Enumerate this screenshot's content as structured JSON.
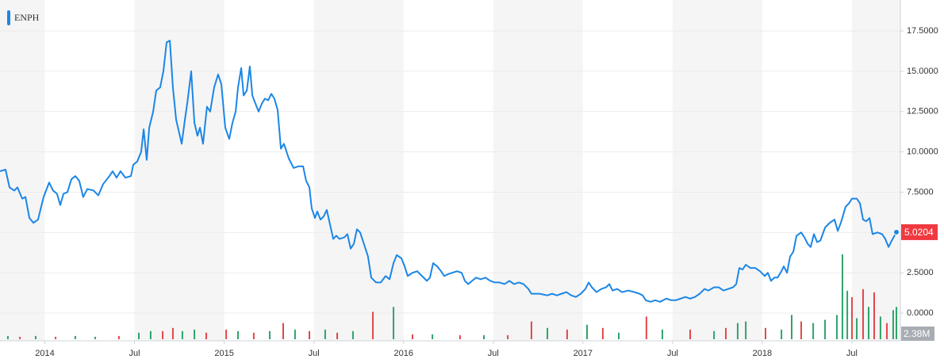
{
  "chart_data": {
    "type": "line",
    "series": [
      {
        "name": "ENPH",
        "color": "#1c86e6",
        "values": [
          8.8,
          8.9,
          7.8,
          7.6,
          7.8,
          7.1,
          7.2,
          5.9,
          5.6,
          5.8,
          7.2,
          8.1,
          7.6,
          7.4,
          6.7,
          7.4,
          7.5,
          8.3,
          8.5,
          8.2,
          7.2,
          7.7,
          7.6,
          7.3,
          8.0,
          8.5,
          8.8,
          8.4,
          8.8,
          8.4,
          8.5,
          9.2,
          9.4,
          10.0,
          11.4,
          9.5,
          11.5,
          12.5,
          13.8,
          14.0,
          15.0,
          16.8,
          16.9,
          14.0,
          12.0,
          10.5,
          12.0,
          13.0,
          15.0,
          11.8,
          11.0,
          11.5,
          10.5,
          12.8,
          12.5,
          14.0,
          14.8,
          14.2,
          11.5,
          10.8,
          11.8,
          12.5,
          14.0,
          15.2,
          13.5,
          13.8,
          15.3,
          13.5,
          13.0,
          12.5,
          13.0,
          13.3,
          13.2,
          13.6,
          13.3,
          12.6,
          10.2,
          10.5,
          9.6,
          9.0,
          9.1,
          9.1,
          8.2,
          7.8,
          6.5,
          5.9,
          6.3,
          5.8,
          6.0,
          6.4,
          5.5,
          4.6,
          4.8,
          4.6,
          4.7,
          4.9,
          4.0,
          4.3,
          5.2,
          5.0,
          4.4,
          3.5,
          2.2,
          1.9,
          1.9,
          2.3,
          2.1,
          3.1,
          3.6,
          3.4,
          2.9,
          2.3,
          2.5,
          2.6,
          2.3,
          2.0,
          2.2,
          3.1,
          2.9,
          2.6,
          2.3,
          2.4,
          2.5,
          2.6,
          2.5,
          2.0,
          1.8,
          2.0,
          2.2,
          2.1,
          2.2,
          2.0,
          1.9,
          1.9,
          1.8,
          2.0,
          1.8,
          1.9,
          1.8,
          1.5,
          1.2,
          1.2,
          1.1,
          1.2,
          1.1,
          1.2,
          1.3,
          1.1,
          1.0,
          1.2,
          1.5,
          1.9,
          1.6,
          1.3,
          1.5,
          1.6,
          1.8,
          1.4,
          1.5,
          1.3,
          1.4,
          1.3,
          1.2,
          1.1,
          0.8,
          0.7,
          0.8,
          0.7,
          0.9,
          0.8,
          0.8,
          0.9,
          1.0,
          0.9,
          1.0,
          1.2,
          1.5,
          1.4,
          1.6,
          1.6,
          1.4,
          1.5,
          1.6,
          1.8,
          2.8,
          2.7,
          3.0,
          2.8,
          2.8,
          2.6,
          2.3,
          2.5,
          2.0,
          2.2,
          2.2,
          2.5,
          2.9,
          2.5,
          3.5,
          3.8,
          4.8,
          5.0,
          4.7,
          4.3,
          4.1,
          4.9,
          4.4,
          4.5,
          5.3,
          5.6,
          5.8,
          5.1,
          5.6,
          6.6,
          6.8,
          7.1,
          7.1,
          6.8,
          5.8,
          5.7,
          5.9,
          4.9,
          5.0,
          4.9,
          4.6,
          4.1,
          4.5,
          5.0204
        ]
      }
    ],
    "x": [
      2013.75,
      2013.781,
      2013.803,
      2013.83,
      2013.847,
      2013.874,
      2013.892,
      2013.914,
      2013.936,
      2013.962,
      2013.993,
      2014.024,
      2014.046,
      2014.068,
      2014.086,
      2014.104,
      2014.126,
      2014.148,
      2014.17,
      2014.192,
      2014.214,
      2014.237,
      2014.272,
      2014.298,
      2014.325,
      2014.36,
      2014.378,
      2014.4,
      2014.422,
      2014.449,
      2014.48,
      2014.493,
      2014.515,
      2014.537,
      2014.551,
      2014.568,
      2014.582,
      2014.604,
      2014.621,
      2014.643,
      2014.661,
      2014.679,
      2014.697,
      2014.714,
      2014.732,
      2014.763,
      2014.781,
      2014.794,
      2014.816,
      2014.834,
      2014.851,
      2014.865,
      2014.882,
      2014.904,
      2014.922,
      2014.944,
      2014.966,
      2014.984,
      2015.006,
      2015.028,
      2015.046,
      2015.064,
      2015.077,
      2015.095,
      2015.108,
      2015.126,
      2015.143,
      2015.157,
      2015.174,
      2015.192,
      2015.21,
      2015.227,
      2015.245,
      2015.263,
      2015.28,
      2015.298,
      2015.316,
      2015.333,
      2015.36,
      2015.387,
      2015.413,
      2015.44,
      2015.457,
      2015.475,
      2015.488,
      2015.506,
      2015.519,
      2015.537,
      2015.555,
      2015.572,
      2015.59,
      2015.608,
      2015.625,
      2015.643,
      2015.67,
      2015.687,
      2015.705,
      2015.723,
      2015.74,
      2015.758,
      2015.776,
      2015.802,
      2015.82,
      2015.847,
      2015.873,
      2015.9,
      2015.922,
      2015.944,
      2015.962,
      2015.988,
      2016.006,
      2016.023,
      2016.05,
      2016.076,
      2016.103,
      2016.13,
      2016.147,
      2016.165,
      2016.187,
      2016.209,
      2016.227,
      2016.245,
      2016.271,
      2016.298,
      2016.324,
      2016.342,
      2016.36,
      2016.382,
      2016.404,
      2016.43,
      2016.457,
      2016.483,
      2016.51,
      2016.536,
      2016.563,
      2016.59,
      2016.616,
      2016.643,
      2016.669,
      2016.696,
      2016.713,
      2016.758,
      2016.802,
      2016.828,
      2016.855,
      2016.881,
      2016.908,
      2016.935,
      2016.961,
      2016.988,
      2017.014,
      2017.032,
      2017.05,
      2017.076,
      2017.103,
      2017.129,
      2017.147,
      2017.165,
      2017.191,
      2017.218,
      2017.253,
      2017.288,
      2017.315,
      2017.333,
      2017.35,
      2017.377,
      2017.403,
      2017.43,
      2017.465,
      2017.492,
      2017.518,
      2017.545,
      2017.571,
      2017.598,
      2017.625,
      2017.651,
      2017.678,
      2017.7,
      2017.731,
      2017.757,
      2017.784,
      2017.81,
      2017.837,
      2017.855,
      2017.872,
      2017.89,
      2017.908,
      2017.934,
      2017.961,
      2017.987,
      2018.014,
      2018.031,
      2018.049,
      2018.067,
      2018.085,
      2018.102,
      2018.12,
      2018.138,
      2018.155,
      2018.173,
      2018.191,
      2018.217,
      2018.235,
      2018.253,
      2018.27,
      2018.288,
      2018.306,
      2018.324,
      2018.35,
      2018.376,
      2018.403,
      2018.421,
      2018.438,
      2018.465,
      2018.483,
      2018.5,
      2018.527,
      2018.545,
      2018.562,
      2018.58,
      2018.598,
      2018.615,
      2018.642,
      2018.668,
      2018.686,
      2018.704,
      2018.722,
      2018.748
    ],
    "xlim": [
      2013.75,
      2018.77
    ],
    "xticks": [
      {
        "value": 2014,
        "label": "2014"
      },
      {
        "value": 2014.5,
        "label": "Jul"
      },
      {
        "value": 2015,
        "label": "2015"
      },
      {
        "value": 2015.5,
        "label": "Jul"
      },
      {
        "value": 2016,
        "label": "2016"
      },
      {
        "value": 2016.5,
        "label": "Jul"
      },
      {
        "value": 2017,
        "label": "2017"
      },
      {
        "value": 2017.5,
        "label": "Jul"
      },
      {
        "value": 2018,
        "label": "2018"
      },
      {
        "value": 2018.5,
        "label": "Jul"
      }
    ],
    "ylim": [
      -1.62,
      19.42
    ],
    "yticks": [
      {
        "value": 0,
        "label": "0.0000"
      },
      {
        "value": 2.5,
        "label": "2.5000"
      },
      {
        "value": 5,
        "label": "5.0000"
      },
      {
        "value": 7.5,
        "label": "7.5000"
      },
      {
        "value": 10,
        "label": "10.0000"
      },
      {
        "value": 12.5,
        "label": "12.5000"
      },
      {
        "value": 15,
        "label": "15.0000"
      },
      {
        "value": 17.5,
        "label": "17.5000"
      }
    ],
    "grid": true,
    "shaded_bands": true,
    "price_tag_color": "#f0393f",
    "volume": {
      "x": [
        2013.794,
        2013.861,
        2013.949,
        2014.06,
        2014.17,
        2014.281,
        2014.413,
        2014.524,
        2014.59,
        2014.657,
        2014.714,
        2014.767,
        2014.834,
        2014.9,
        2015.011,
        2015.077,
        2015.165,
        2015.254,
        2015.329,
        2015.395,
        2015.475,
        2015.563,
        2015.63,
        2015.718,
        2015.829,
        2015.944,
        2016.05,
        2016.161,
        2016.315,
        2016.448,
        2016.581,
        2016.713,
        2016.802,
        2016.912,
        2017.023,
        2017.111,
        2017.2,
        2017.354,
        2017.443,
        2017.598,
        2017.731,
        2017.797,
        2017.863,
        2017.908,
        2018.018,
        2018.107,
        2018.164,
        2018.217,
        2018.284,
        2018.35,
        2018.416,
        2018.447,
        2018.474,
        2018.5,
        2018.527,
        2018.562,
        2018.593,
        2018.624,
        2018.659,
        2018.695,
        2018.73,
        2018.748
      ],
      "values": [
        0.24,
        0.18,
        0.24,
        0.18,
        0.24,
        0.18,
        0.24,
        0.48,
        0.6,
        0.6,
        0.83,
        0.6,
        0.71,
        0.48,
        0.71,
        0.6,
        0.48,
        0.6,
        1.19,
        0.71,
        0.6,
        0.71,
        0.48,
        0.6,
        2.02,
        2.38,
        0.36,
        0.36,
        0.3,
        0.3,
        0.3,
        1.31,
        0.83,
        0.71,
        1.07,
        0.83,
        0.48,
        1.67,
        0.71,
        0.71,
        0.6,
        0.83,
        1.19,
        1.31,
        0.83,
        0.71,
        1.79,
        1.31,
        1.19,
        1.43,
        1.79,
        6.25,
        3.57,
        3.1,
        1.55,
        3.69,
        2.38,
        3.45,
        1.67,
        1.19,
        2.14,
        2.38
      ],
      "colors": [
        "#2fa36b",
        "#e2464a",
        "#2fa36b",
        "#e2464a",
        "#2fa36b",
        "#2fa36b",
        "#e2464a",
        "#2fa36b",
        "#2fa36b",
        "#e2464a",
        "#e2464a",
        "#2fa36b",
        "#2fa36b",
        "#e2464a",
        "#e2464a",
        "#2fa36b",
        "#e2464a",
        "#2fa36b",
        "#e2464a",
        "#2fa36b",
        "#e2464a",
        "#2fa36b",
        "#e2464a",
        "#2fa36b",
        "#e2464a",
        "#2fa36b",
        "#e2464a",
        "#2fa36b",
        "#e2464a",
        "#2fa36b",
        "#e2464a",
        "#e2464a",
        "#2fa36b",
        "#e2464a",
        "#2fa36b",
        "#e2464a",
        "#2fa36b",
        "#e2464a",
        "#2fa36b",
        "#e2464a",
        "#2fa36b",
        "#e2464a",
        "#2fa36b",
        "#2fa36b",
        "#e2464a",
        "#2fa36b",
        "#2fa36b",
        "#e2464a",
        "#2fa36b",
        "#2fa36b",
        "#2fa36b",
        "#2fa36b",
        "#2fa36b",
        "#e2464a",
        "#2fa36b",
        "#e2464a",
        "#2fa36b",
        "#e2464a",
        "#2fa36b",
        "#e2464a",
        "#2fa36b",
        "#2fa36b"
      ],
      "ylim": [
        0,
        25
      ],
      "last_label": "2.38M",
      "tag_color": "#a8acb3"
    }
  }
}
